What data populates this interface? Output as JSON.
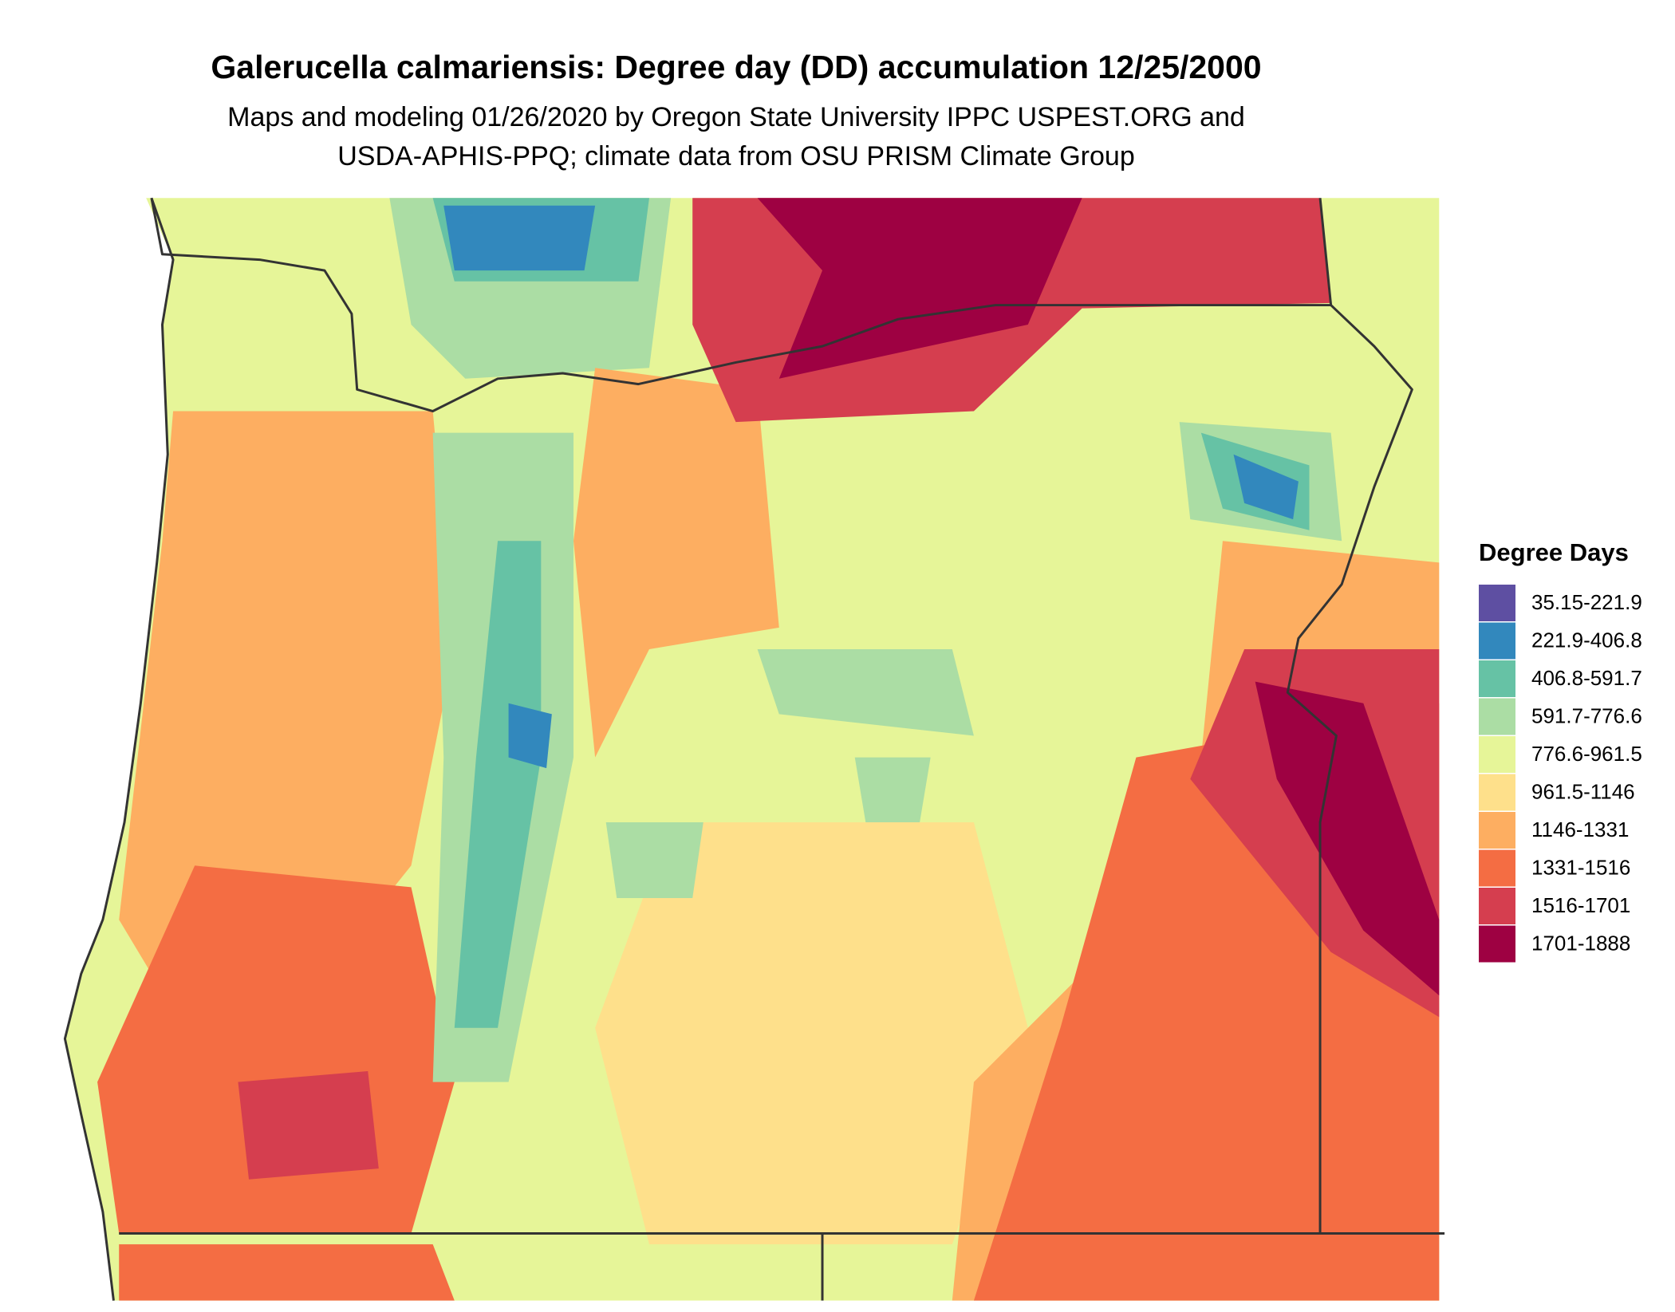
{
  "title": "Galerucella calmariensis: Degree day (DD) accumulation 12/25/2000",
  "subtitle": [
    "Maps and modeling 01/26/2020 by Oregon State University IPPC USPEST.ORG and",
    "USDA-APHIS-PPQ; climate data from OSU PRISM Climate Group"
  ],
  "legend": {
    "title": "Degree Days",
    "items": [
      {
        "label": "35.15-221.9",
        "color": "#5e4fa2"
      },
      {
        "label": "221.9-406.8",
        "color": "#3288bd"
      },
      {
        "label": "406.8-591.7",
        "color": "#66c2a5"
      },
      {
        "label": "591.7-776.6",
        "color": "#abdda4"
      },
      {
        "label": "776.6-961.5",
        "color": "#e6f598"
      },
      {
        "label": "961.5-1146",
        "color": "#fee08b"
      },
      {
        "label": "1146-1331",
        "color": "#fdae61"
      },
      {
        "label": "1331-1516",
        "color": "#f46d43"
      },
      {
        "label": "1516-1701",
        "color": "#d53e4f"
      },
      {
        "label": "1701-1888",
        "color": "#9e0142"
      }
    ]
  }
}
